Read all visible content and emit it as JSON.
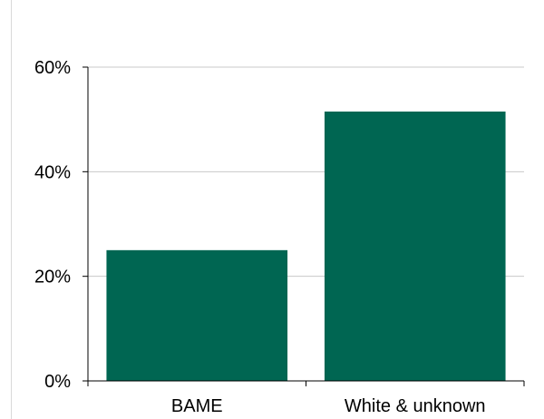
{
  "chart_data": {
    "type": "bar",
    "title": "",
    "xlabel": "",
    "ylabel": "",
    "categories": [
      "BAME",
      "White & unknown"
    ],
    "values": [
      25,
      51.5
    ],
    "ylim": [
      0,
      60
    ],
    "yticks": [
      0,
      20,
      40,
      60
    ],
    "ytick_labels": [
      "0%",
      "20%",
      "40%",
      "60%"
    ],
    "grid": true,
    "legend": "none",
    "colors": {
      "bar": "#006652",
      "grid": "#c8c8c8",
      "axis": "#000000"
    }
  }
}
